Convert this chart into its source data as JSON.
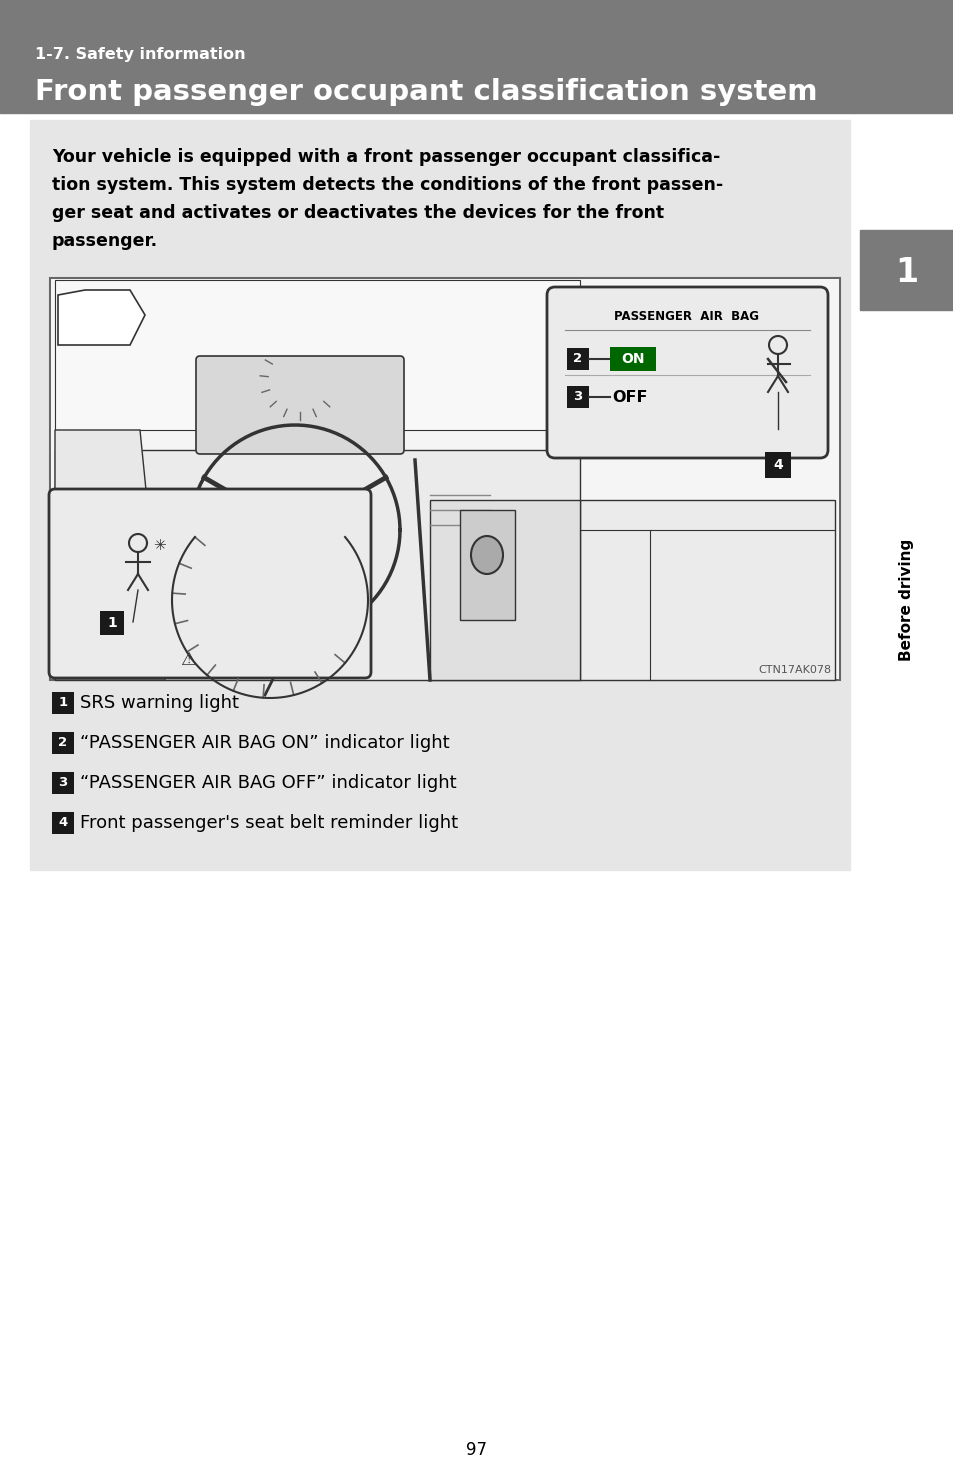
{
  "page_bg": "#ffffff",
  "header_bg": "#7a7a7a",
  "header_subtitle": "1-7. Safety information",
  "header_title": "Front passenger occupant classification system",
  "header_subtitle_color": "#ffffff",
  "header_title_color": "#ffffff",
  "content_bg": "#e6e6e6",
  "body_text_lines": [
    "Your vehicle is equipped with a front passenger occupant classifica-",
    "tion system. This system detects the conditions of the front passen-",
    "ger seat and activates or deactivates the devices for the front",
    "passenger."
  ],
  "legend_items": [
    {
      "num": "1",
      "text": "SRS warning light"
    },
    {
      "num": "2",
      "text": "“PASSENGER AIR BAG ON” indicator light"
    },
    {
      "num": "3",
      "text": "“PASSENGER AIR BAG OFF” indicator light"
    },
    {
      "num": "4",
      "text": "Front passenger's seat belt reminder light"
    }
  ],
  "num_box_color": "#1a1a1a",
  "num_text_color": "#ffffff",
  "sidebar_box_bg": "#7a7a7a",
  "sidebar_text": "Before driving",
  "sidebar_num": "1",
  "page_num": "97",
  "image_code": "CTN17AK078",
  "air_bag_label": "PASSENGER  AIR  BAG",
  "on_label": "ON",
  "off_label": "OFF",
  "on_bg": "#006600",
  "line_color": "#333333",
  "ill_bg": "#f5f5f5",
  "panel_bg": "#e0e0e0"
}
